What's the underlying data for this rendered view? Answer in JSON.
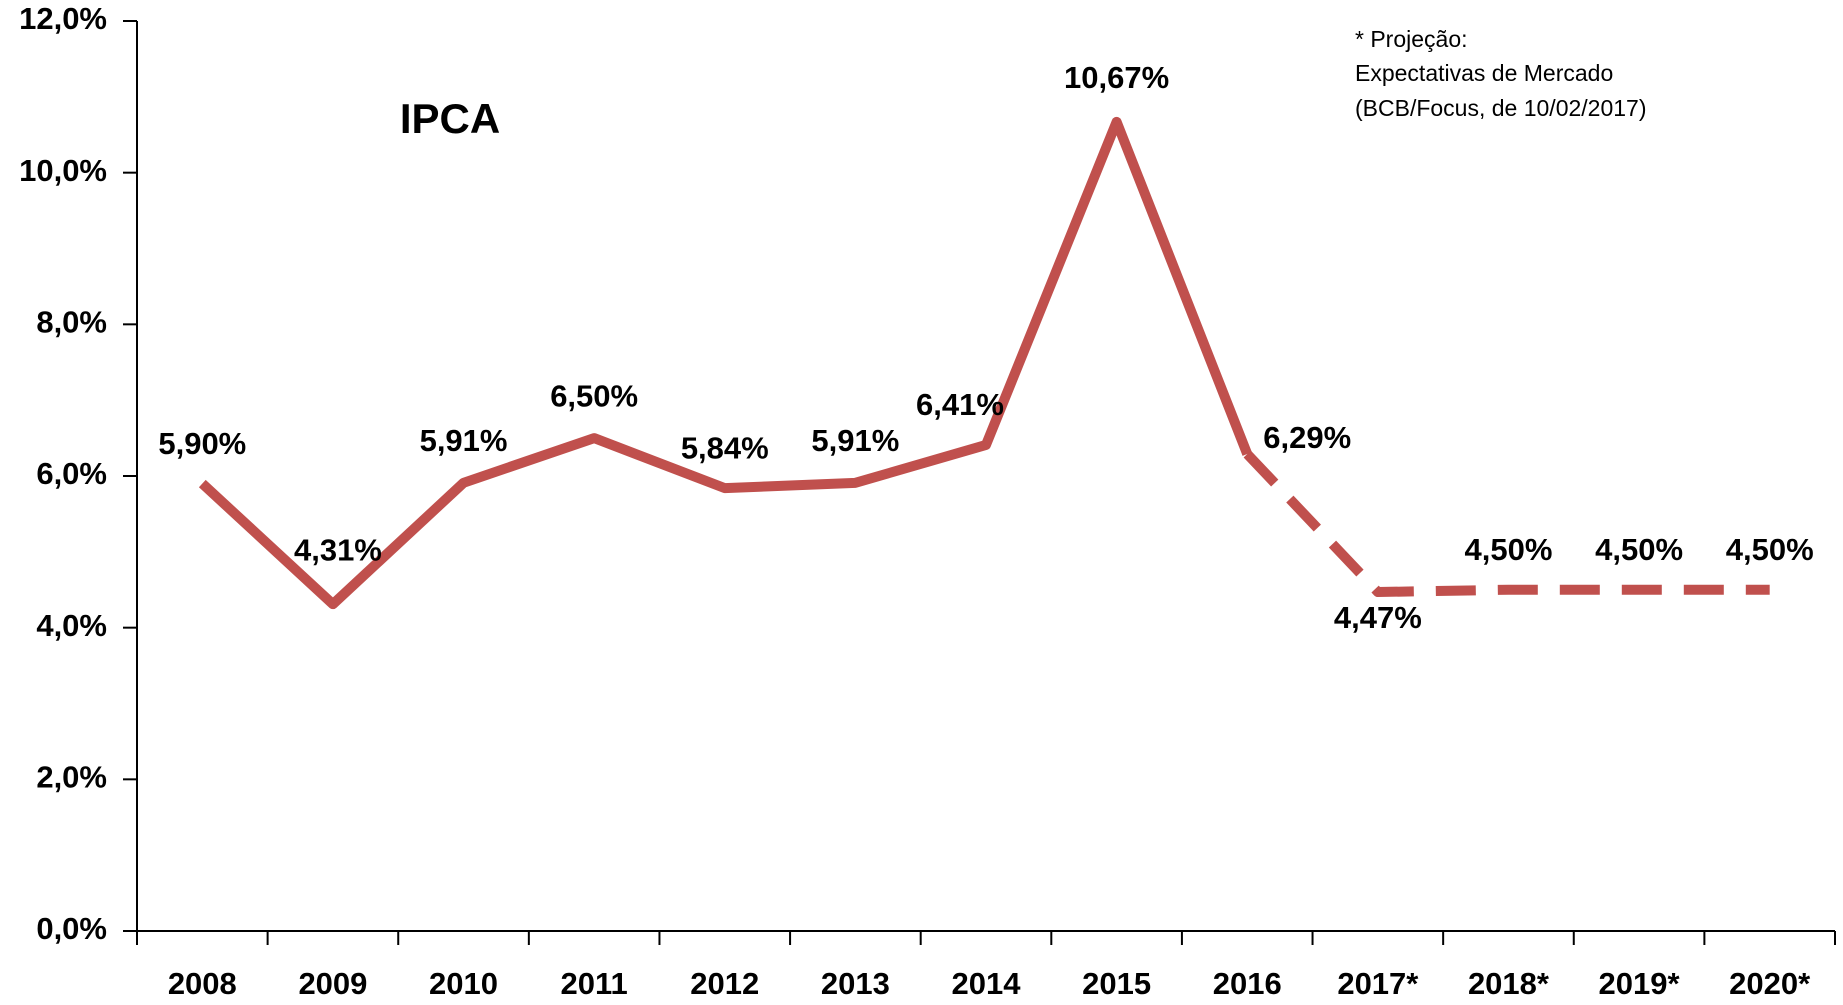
{
  "chart_data": {
    "type": "line",
    "title": "IPCA",
    "annotation": [
      "* Projeção:",
      "Expectativas de Mercado",
      "(BCB/Focus, de 10/02/2017)"
    ],
    "categories": [
      "2008",
      "2009",
      "2010",
      "2011",
      "2012",
      "2013",
      "2014",
      "2015",
      "2016",
      "2017*",
      "2018*",
      "2019*",
      "2020*"
    ],
    "values": [
      5.9,
      4.31,
      5.91,
      6.5,
      5.84,
      5.91,
      6.41,
      10.67,
      6.29,
      4.47,
      4.5,
      4.5,
      4.5
    ],
    "value_labels": [
      "5,90%",
      "4,31%",
      "5,91%",
      "6,50%",
      "5,84%",
      "5,91%",
      "6,41%",
      "10,67%",
      "6,29%",
      "4,47%",
      "4,50%",
      "4,50%",
      "4,50%"
    ],
    "color": "#c0504d",
    "dashed_from": 8,
    "ylim": [
      0,
      12
    ],
    "yticks": [
      {
        "value": 0,
        "label": "0,0%"
      },
      {
        "value": 2,
        "label": "2,0%"
      },
      {
        "value": 4,
        "label": "4,0%"
      },
      {
        "value": 6,
        "label": "6,0%"
      },
      {
        "value": 8,
        "label": "8,0%"
      },
      {
        "value": 10,
        "label": "10,0%"
      },
      {
        "value": 12,
        "label": "12,0%"
      }
    ]
  }
}
